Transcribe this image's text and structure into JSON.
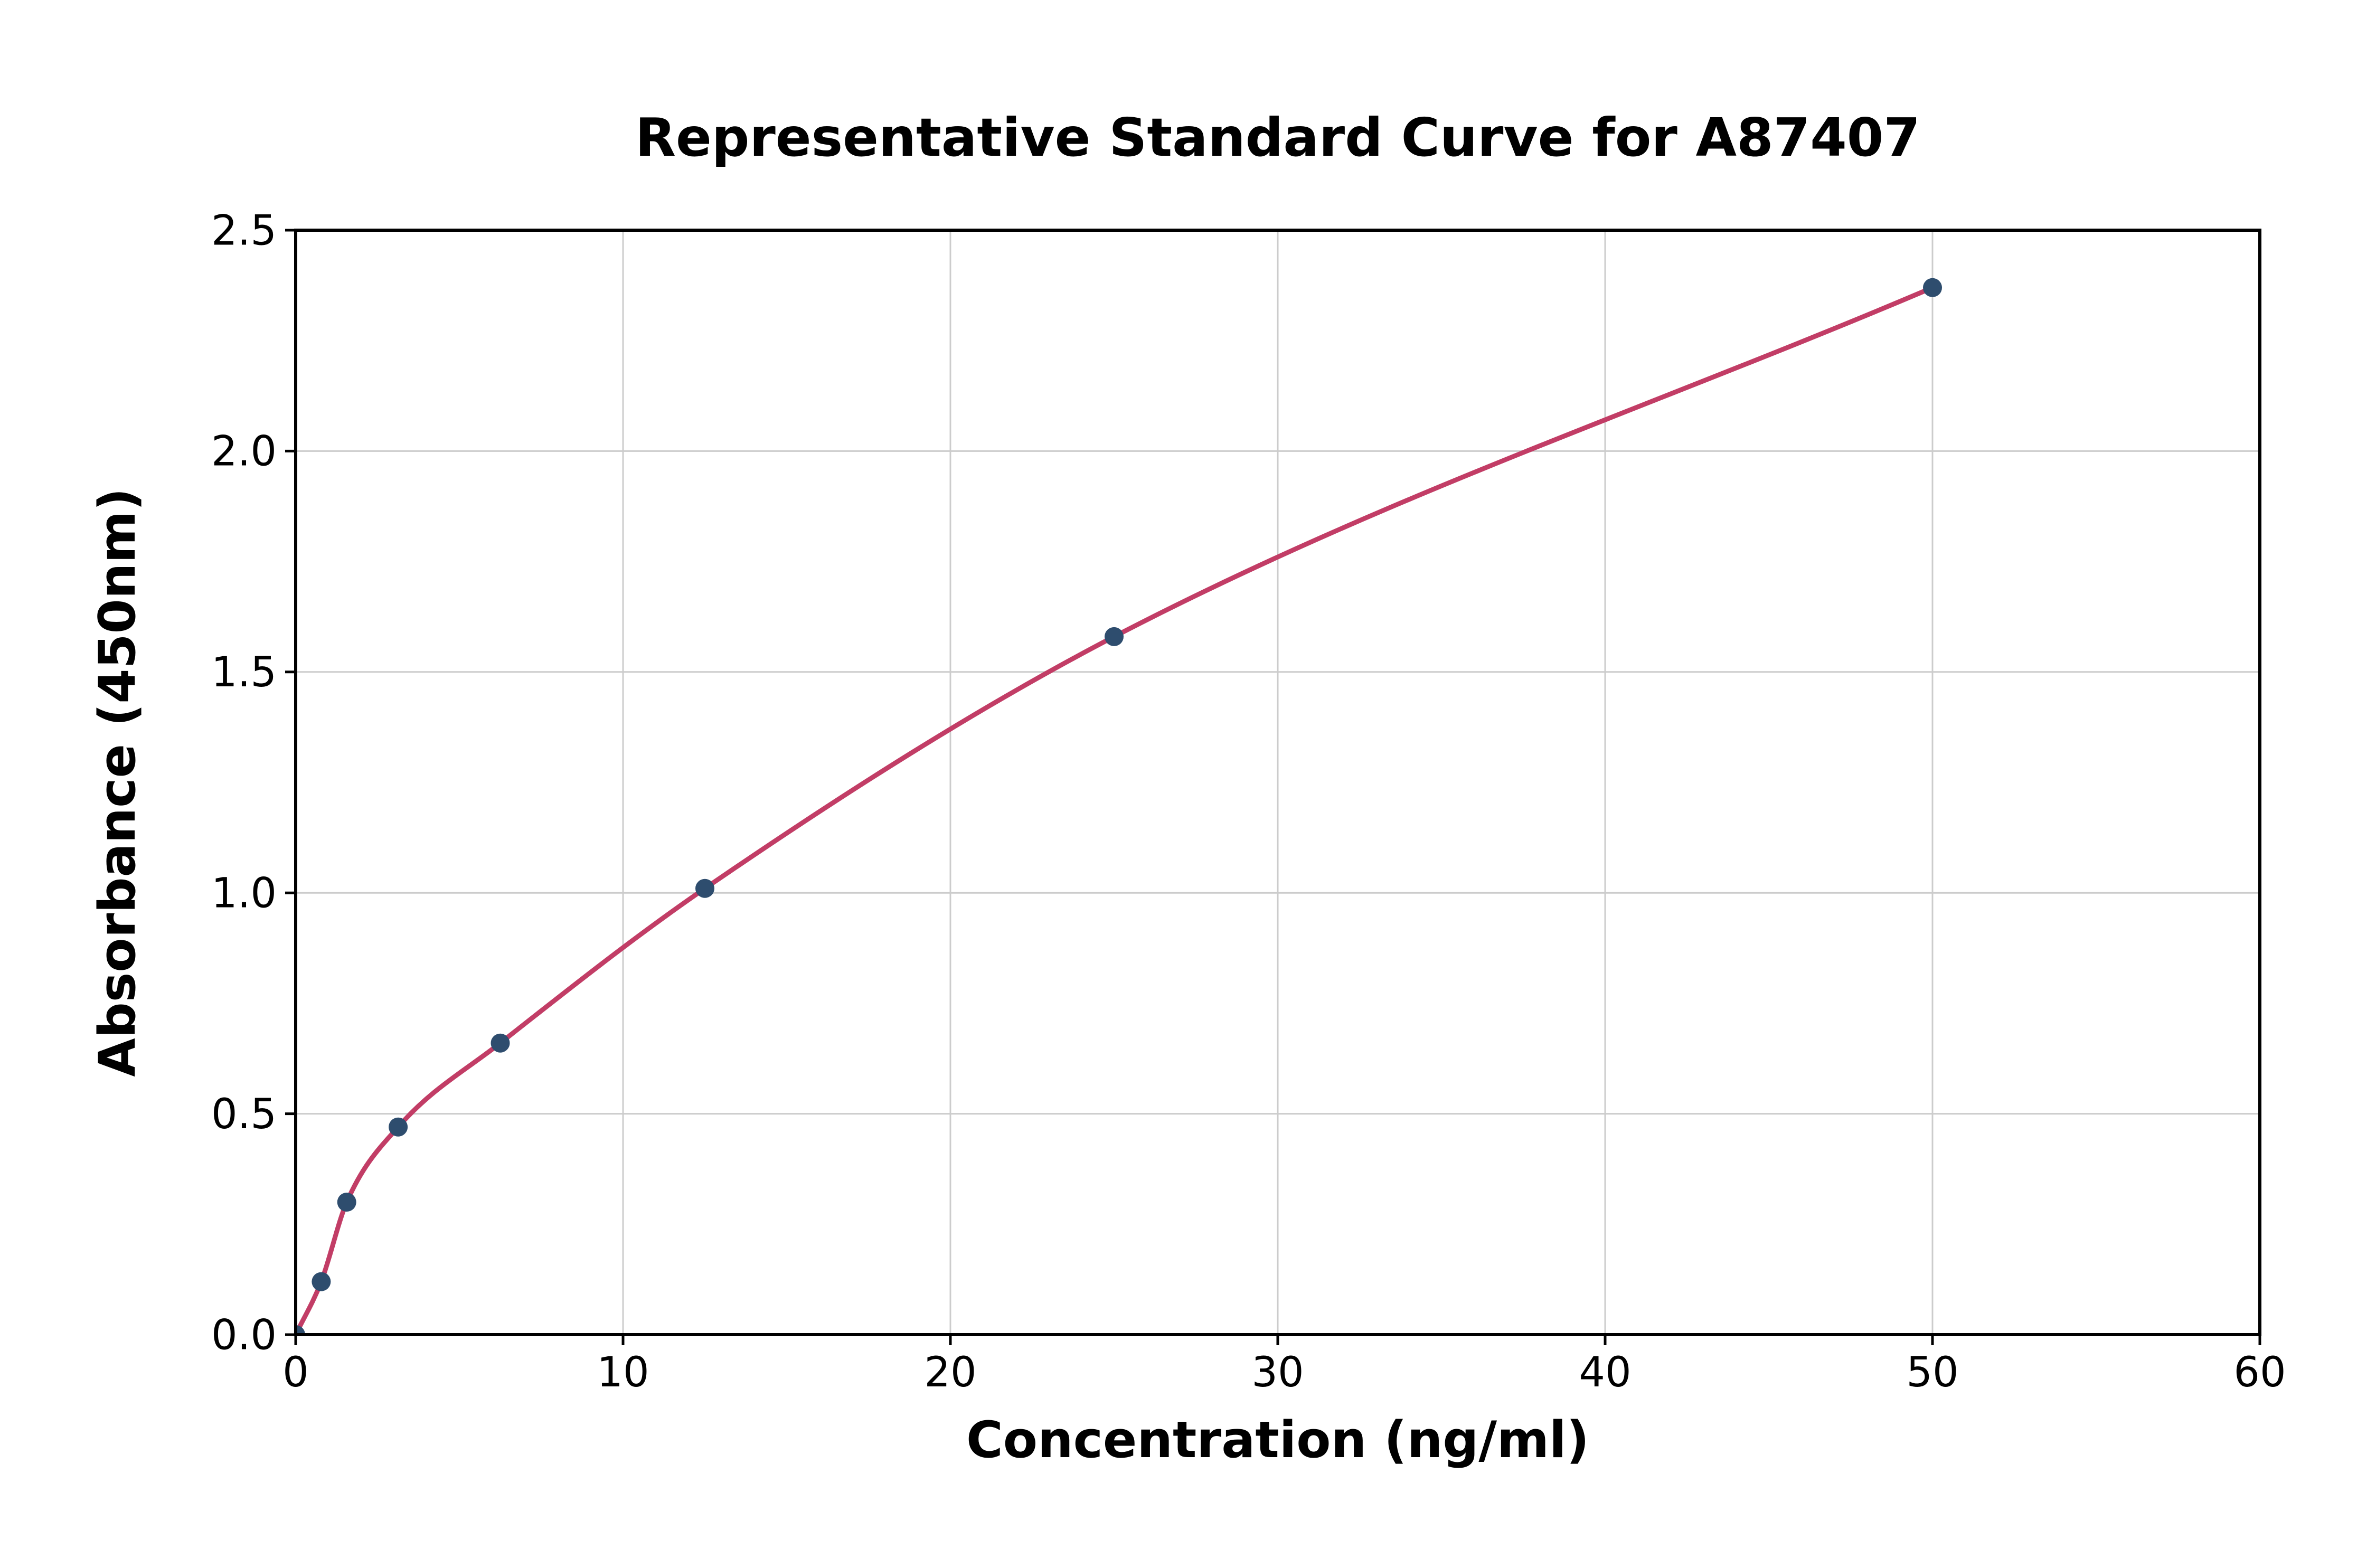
{
  "page": {
    "background": "#ffffff"
  },
  "chart_data": {
    "type": "scatter",
    "title": "Representative Standard Curve for A87407",
    "xlabel": "Concentration (ng/ml)",
    "ylabel": "Absorbance (450nm)",
    "xlim": [
      0,
      60
    ],
    "ylim": [
      0,
      2.5
    ],
    "xticks": [
      0,
      10,
      20,
      30,
      40,
      50,
      60
    ],
    "yticks": [
      0,
      0.5,
      1.0,
      1.5,
      2.0,
      2.5
    ],
    "xtick_labels": [
      "0",
      "10",
      "20",
      "30",
      "40",
      "50",
      "60"
    ],
    "ytick_labels": [
      "0.0",
      "0.5",
      "1.0",
      "1.5",
      "2.0",
      "2.5"
    ],
    "grid": true,
    "legend": "none",
    "series": [
      {
        "name": "standard-points",
        "type": "scatter",
        "x": [
          0,
          0.78,
          1.56,
          3.13,
          6.25,
          12.5,
          25,
          50
        ],
        "y": [
          0,
          0.12,
          0.3,
          0.47,
          0.66,
          1.01,
          1.58,
          2.37
        ],
        "marker_color": "#2e4d6e"
      },
      {
        "name": "fit-curve",
        "type": "line",
        "color": "#c23d66"
      }
    ],
    "colors": {
      "grid": "#cccccc",
      "axis": "#000000",
      "point": "#2e4d6e",
      "curve": "#c23d66"
    }
  }
}
